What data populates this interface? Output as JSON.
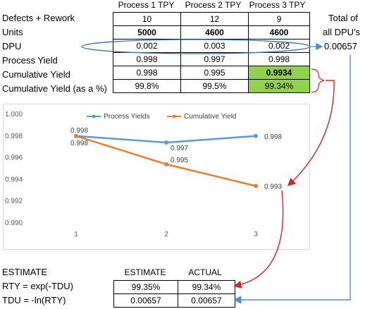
{
  "columns": [
    "Process 1 TPY",
    "Process 2 TPY",
    "Process 3 TPY"
  ],
  "total_label": [
    "Total of",
    "all DPU's"
  ],
  "total_value": "0.00657",
  "rows": [
    {
      "label": "Defects + Rework",
      "values": [
        "10",
        "12",
        "9"
      ]
    },
    {
      "label": "Units",
      "values": [
        "5000",
        "4600",
        "4600"
      ]
    },
    {
      "label": "DPU",
      "values": [
        "0.002",
        "0.003",
        "0.002"
      ]
    },
    {
      "label": "Process Yield",
      "values": [
        "0.998",
        "0.997",
        "0.998"
      ]
    },
    {
      "label": "Cumulative Yield",
      "values": [
        "0.998",
        "0.995",
        "0.9934"
      ]
    },
    {
      "label": "Cumulative Yield (as a %)",
      "values": [
        "99.8%",
        "99.5%",
        "99.34%"
      ]
    }
  ],
  "highlight_color": "#92d050",
  "chart_data": {
    "type": "line",
    "x": [
      1,
      2,
      3
    ],
    "ylim": [
      0.99,
      1.0
    ],
    "yticks": [
      "1.000",
      "0.998",
      "0.996",
      "0.994",
      "0.992",
      "0.990"
    ],
    "xticks": [
      "1",
      "2",
      "3"
    ],
    "legend_position": "top",
    "series": [
      {
        "name": "Process Yields",
        "color": "#5b9bd5",
        "values": [
          0.998,
          0.9974,
          0.998
        ],
        "labels": [
          "0.998",
          "0.997",
          "0.998"
        ]
      },
      {
        "name": "Cumulative Yield",
        "color": "#ed7d31",
        "values": [
          0.998,
          0.9954,
          0.9934
        ],
        "labels": [
          "0.998",
          "0.995",
          "0.993"
        ]
      }
    ]
  },
  "bottom": {
    "title": "ESTIMATE",
    "headers": [
      "ESTIMATE",
      "ACTUAL"
    ],
    "rows": [
      {
        "label": "RTY = exp(-TDU)",
        "estimate": "99.35%",
        "actual": "99.34%"
      },
      {
        "label": "TDU = -ln(RTY)",
        "estimate": "0.00657",
        "actual": "0.00657"
      }
    ]
  },
  "arrow_colors": {
    "red": "#e02020",
    "blue": "#4a90d9",
    "ellipse": "#3c6fa8"
  }
}
